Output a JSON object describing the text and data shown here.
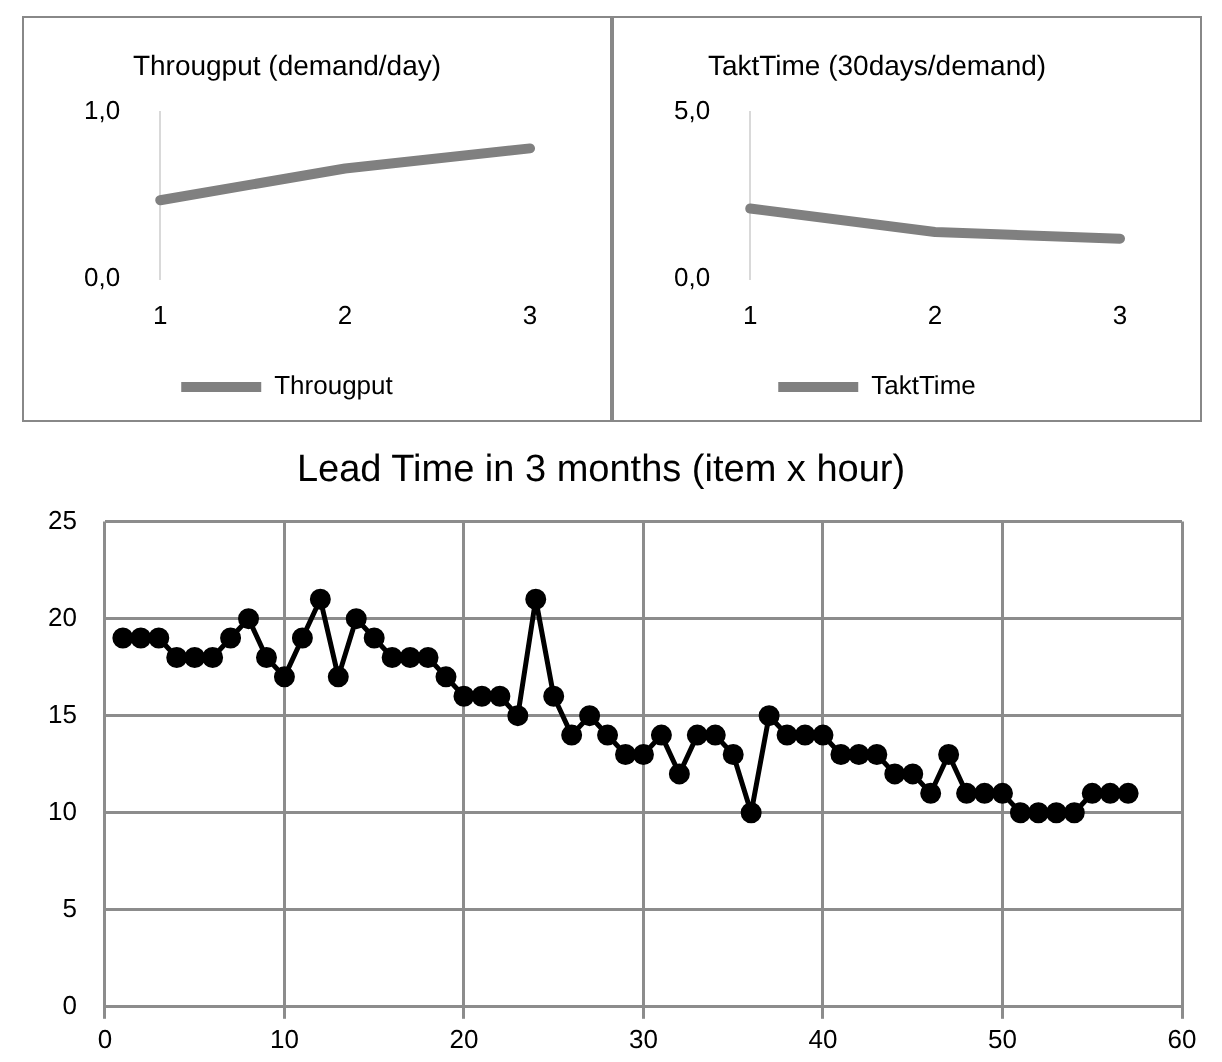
{
  "chart_data": [
    {
      "type": "line",
      "title": "Througput (demand/day)",
      "categories": [
        "1",
        "2",
        "3"
      ],
      "series": [
        {
          "name": "Througput",
          "color": "#808080",
          "values": [
            0.47,
            0.66,
            0.78
          ]
        }
      ],
      "ylim": [
        0,
        1
      ],
      "yticks": [
        {
          "value": 0,
          "label": "0,0"
        },
        {
          "value": 1,
          "label": "1,0"
        }
      ],
      "grid": false,
      "legend": "bottom",
      "marker": "none"
    },
    {
      "type": "line",
      "title": "TaktTime (30days/demand)",
      "categories": [
        "1",
        "2",
        "3"
      ],
      "series": [
        {
          "name": "TaktTime",
          "color": "#808080",
          "values": [
            2.1,
            1.4,
            1.2
          ]
        }
      ],
      "ylim": [
        0,
        5
      ],
      "yticks": [
        {
          "value": 0,
          "label": "0,0"
        },
        {
          "value": 5,
          "label": "5,0"
        }
      ],
      "grid": false,
      "legend": "bottom",
      "marker": "none"
    },
    {
      "type": "line",
      "title": "Lead Time in 3 months (item x hour)",
      "x": [
        1,
        2,
        3,
        4,
        5,
        6,
        7,
        8,
        9,
        10,
        11,
        12,
        13,
        14,
        15,
        16,
        17,
        18,
        19,
        20,
        21,
        22,
        23,
        24,
        25,
        26,
        27,
        28,
        29,
        30,
        31,
        32,
        33,
        34,
        35,
        36,
        37,
        38,
        39,
        40,
        41,
        42,
        43,
        44,
        45,
        46,
        47,
        48,
        49,
        50,
        51,
        52,
        53,
        54,
        55,
        56,
        57
      ],
      "series": [
        {
          "color": "#000000",
          "values": [
            19,
            19,
            19,
            18,
            18,
            18,
            19,
            20,
            18,
            17,
            19,
            21,
            17,
            20,
            19,
            18,
            18,
            18,
            17,
            16,
            16,
            16,
            15,
            21,
            16,
            14,
            15,
            14,
            13,
            13,
            14,
            12,
            14,
            14,
            13,
            10,
            15,
            14,
            14,
            14,
            13,
            13,
            13,
            12,
            12,
            11,
            13,
            11,
            11,
            11,
            10,
            10,
            10,
            10,
            11,
            11,
            11
          ]
        }
      ],
      "xlim": [
        0,
        60
      ],
      "xticks": [
        0,
        10,
        20,
        30,
        40,
        50,
        60
      ],
      "ylim": [
        0,
        25
      ],
      "yticks": [
        0,
        5,
        10,
        15,
        20,
        25
      ],
      "grid": true,
      "legend": false,
      "marker": "circle",
      "line_style": "solid"
    }
  ]
}
